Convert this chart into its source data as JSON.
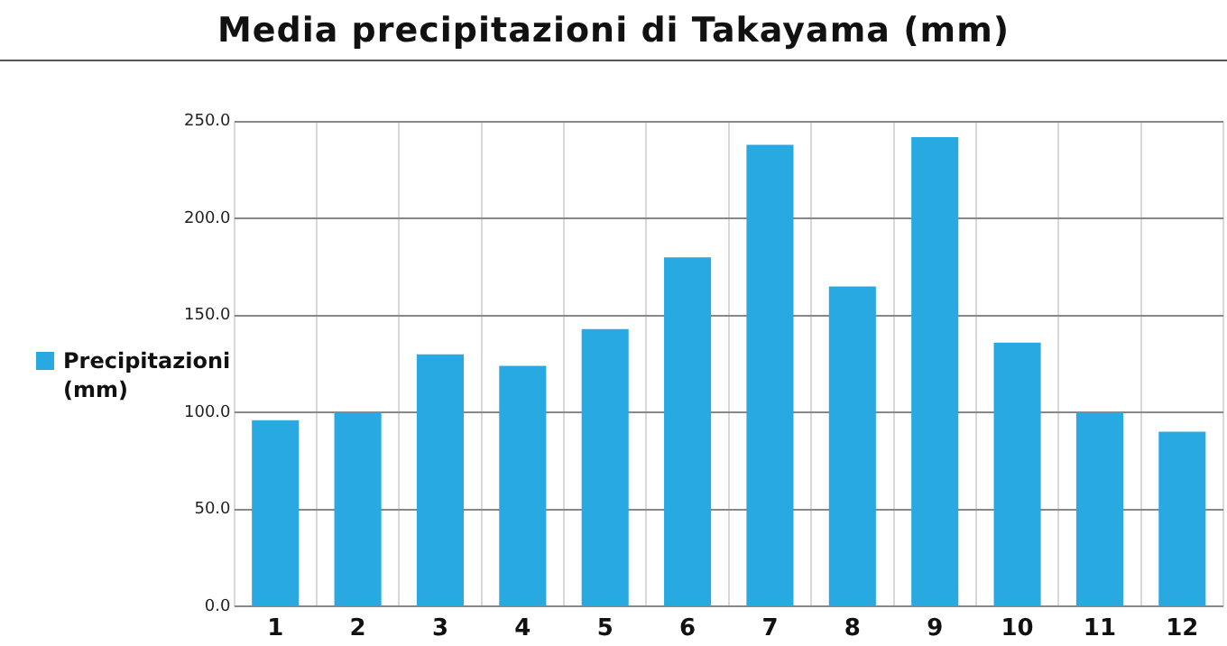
{
  "chart_data": {
    "type": "bar",
    "title": "Media precipitazioni di Takayama (mm)",
    "categories": [
      "1",
      "2",
      "3",
      "4",
      "5",
      "6",
      "7",
      "8",
      "9",
      "10",
      "11",
      "12"
    ],
    "series": [
      {
        "name": "Precipitazioni (mm)",
        "color": "#29a9e1",
        "values": [
          96,
          100,
          130,
          124,
          143,
          180,
          238,
          165,
          242,
          136,
          100,
          90
        ]
      }
    ],
    "ylim": [
      0,
      250
    ],
    "yticks": [
      {
        "value": 0,
        "label": "0.0"
      },
      {
        "value": 50,
        "label": "50.0"
      },
      {
        "value": 100,
        "label": "100.0"
      },
      {
        "value": 150,
        "label": "150.0"
      },
      {
        "value": 200,
        "label": "200.0"
      },
      {
        "value": 250,
        "label": "250.0"
      }
    ],
    "grid": true,
    "legend": "left"
  }
}
